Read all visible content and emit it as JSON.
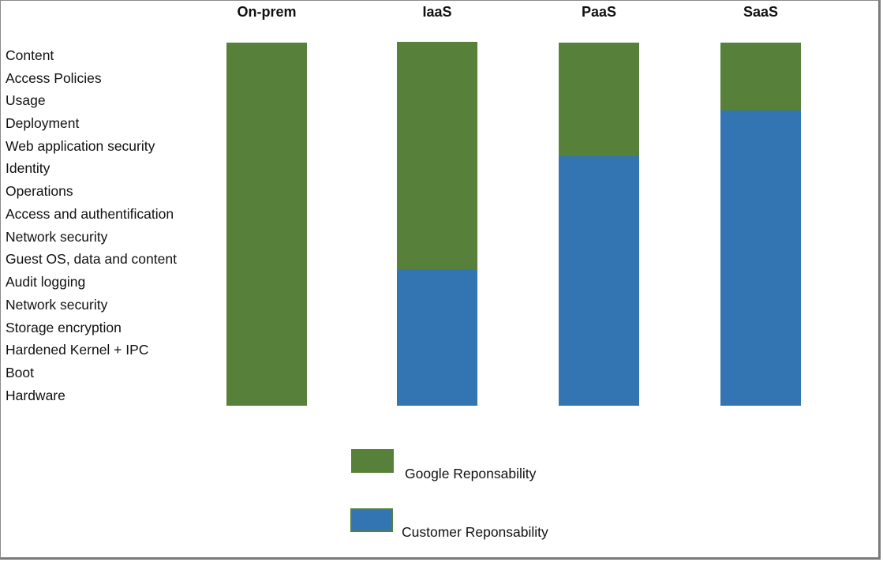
{
  "chart_data": {
    "type": "bar",
    "stacked": true,
    "title": "",
    "categories": [
      "On-prem",
      "IaaS",
      "PaaS",
      "SaaS"
    ],
    "layers_bottom_to_top": [
      "Hardware",
      "Boot",
      "Hardened Kernel + IPC",
      "Storage encryption",
      "Network security",
      "Audit logging",
      "Guest OS, data and content",
      "Network security",
      "Access and authentification",
      "Operations",
      "Identity",
      "Web application security",
      "Deployment",
      "Usage",
      "Access Policies",
      "Content"
    ],
    "series": [
      {
        "name": "Customer Reponsability",
        "color": "#3375b3",
        "values": [
          0,
          6,
          11,
          13
        ]
      },
      {
        "name": "Google Reponsability",
        "color": "#57813b",
        "values": [
          16,
          10,
          5,
          3
        ]
      }
    ],
    "ylim": [
      0,
      16
    ],
    "grid": false,
    "legend_position": "bottom"
  },
  "columns": [
    "On-prem",
    "IaaS",
    "PaaS",
    "SaaS"
  ],
  "layers": [
    "Content",
    "Access Policies",
    "Usage",
    "Deployment",
    "Web application security",
    "Identity",
    "Operations",
    "Access and authentification",
    "Network security",
    "Guest OS, data and content",
    "Audit logging",
    "Network security",
    "Storage encryption",
    "Hardened Kernel + IPC",
    "Boot",
    "Hardware"
  ],
  "legend": {
    "google": "Google Reponsability",
    "customer": "Customer Reponsability"
  },
  "colors": {
    "google": "#57813b",
    "customer": "#3375b3"
  }
}
